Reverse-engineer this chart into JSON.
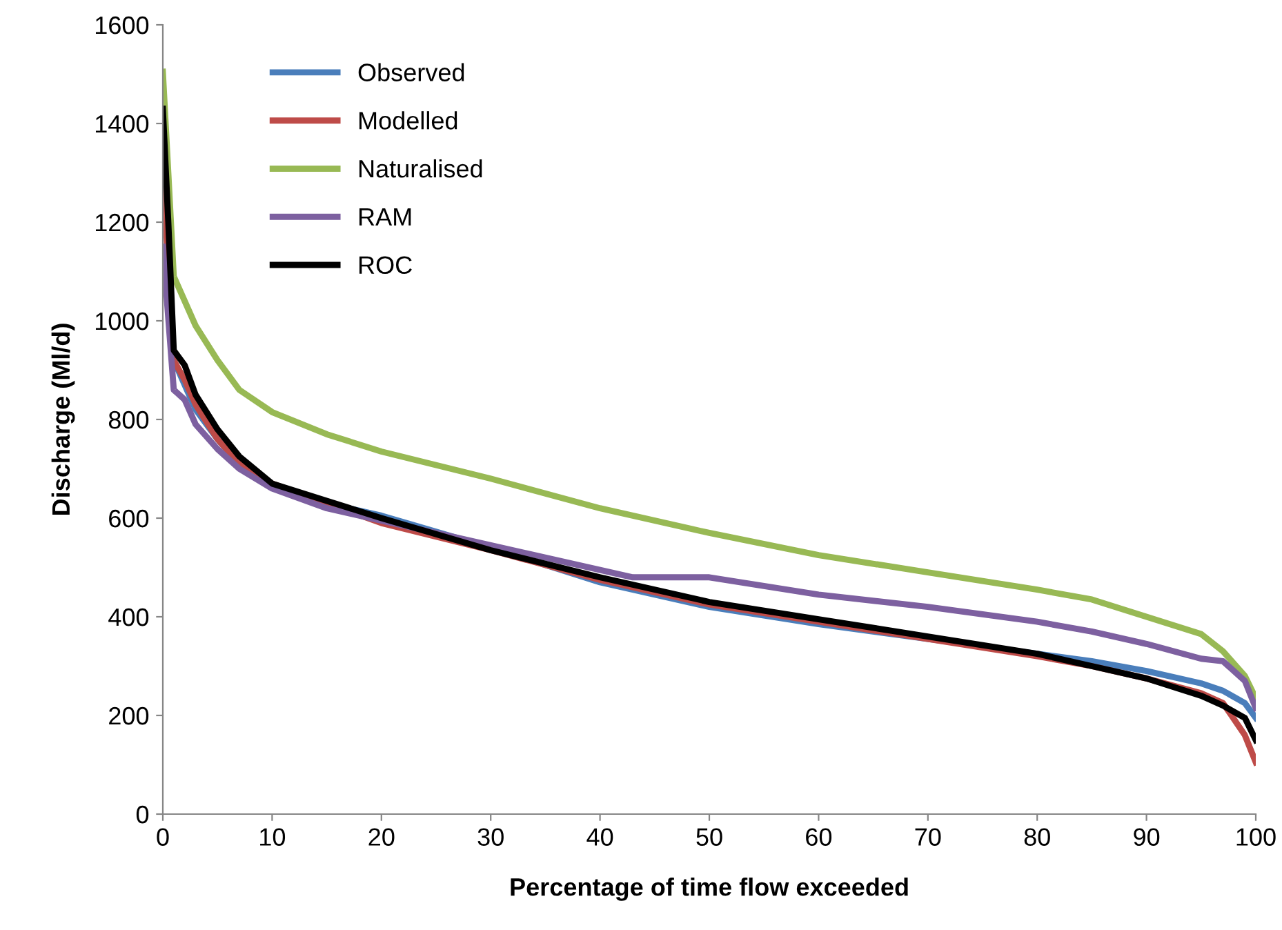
{
  "chart_data": {
    "type": "line",
    "xlabel": "Percentage of time flow exceeded",
    "ylabel": "Discharge (Ml/d)",
    "xlim": [
      0,
      100
    ],
    "xticks": [
      0,
      10,
      20,
      30,
      40,
      50,
      60,
      70,
      80,
      90,
      100
    ],
    "ylim": [
      0,
      1600
    ],
    "yticks": [
      0,
      200,
      400,
      600,
      800,
      1000,
      1200,
      1400,
      1600
    ],
    "grid": false,
    "legend": "top left",
    "marker": "none",
    "line_style": "solid",
    "series": [
      {
        "name": "Observed",
        "color": "#4a7ebb",
        "x": [
          0,
          1,
          2,
          3,
          5,
          7,
          10,
          15,
          20,
          30,
          40,
          50,
          60,
          70,
          80,
          85,
          90,
          95,
          97,
          99,
          100
        ],
        "values": [
          1150,
          920,
          870,
          820,
          760,
          710,
          665,
          630,
          605,
          540,
          470,
          420,
          385,
          355,
          325,
          310,
          290,
          265,
          250,
          225,
          195
        ]
      },
      {
        "name": "Modelled",
        "color": "#be4b48",
        "x": [
          0,
          1,
          2,
          3,
          5,
          7,
          10,
          15,
          20,
          30,
          40,
          50,
          60,
          70,
          80,
          85,
          90,
          95,
          97,
          99,
          100
        ],
        "values": [
          1300,
          920,
          880,
          830,
          760,
          710,
          670,
          630,
          590,
          535,
          475,
          425,
          390,
          355,
          320,
          300,
          275,
          245,
          225,
          160,
          105
        ]
      },
      {
        "name": "Naturalised",
        "color": "#98b954",
        "x": [
          0,
          0.5,
          1,
          2,
          3,
          5,
          7,
          10,
          15,
          20,
          30,
          40,
          50,
          60,
          70,
          80,
          85,
          90,
          95,
          97,
          99,
          100
        ],
        "values": [
          1505,
          1300,
          1090,
          1040,
          990,
          920,
          860,
          815,
          770,
          735,
          680,
          620,
          570,
          525,
          490,
          455,
          435,
          400,
          365,
          330,
          280,
          235
        ]
      },
      {
        "name": "RAM",
        "color": "#7d60a0",
        "x": [
          0,
          1,
          2,
          3,
          5,
          7,
          10,
          15,
          20,
          30,
          40,
          43,
          50,
          60,
          70,
          80,
          85,
          90,
          95,
          97,
          99,
          100
        ],
        "values": [
          1150,
          860,
          840,
          790,
          740,
          700,
          660,
          620,
          595,
          545,
          495,
          480,
          480,
          445,
          420,
          390,
          370,
          345,
          315,
          310,
          270,
          215
        ]
      },
      {
        "name": "ROC",
        "color": "#000000",
        "x": [
          0,
          0.5,
          1,
          2,
          3,
          5,
          7,
          10,
          15,
          20,
          30,
          40,
          50,
          60,
          70,
          80,
          85,
          90,
          95,
          97,
          99,
          100
        ],
        "values": [
          1430,
          1200,
          940,
          910,
          850,
          780,
          725,
          670,
          635,
          600,
          535,
          480,
          430,
          395,
          360,
          325,
          300,
          275,
          240,
          220,
          195,
          150
        ]
      }
    ]
  }
}
